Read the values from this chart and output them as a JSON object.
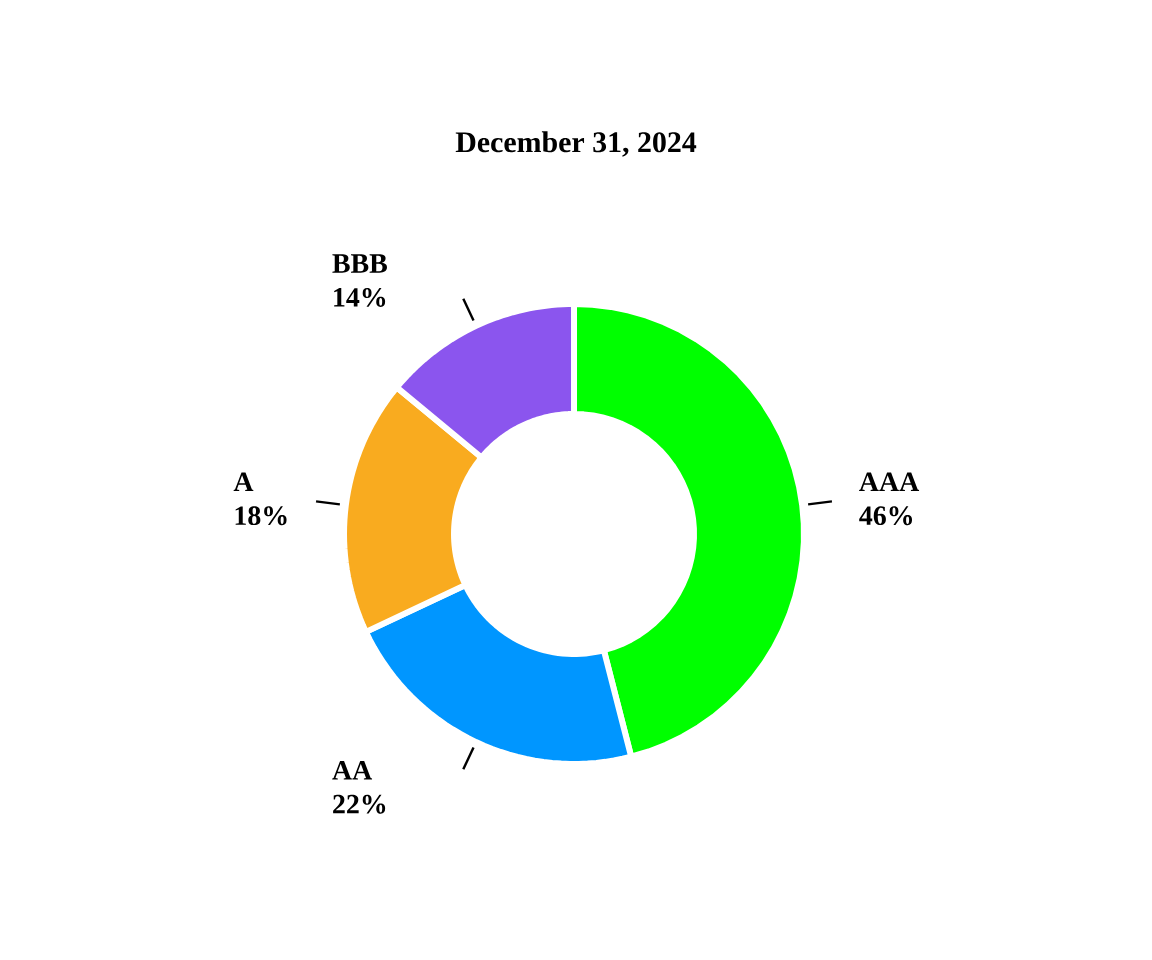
{
  "chart_data": {
    "type": "donut",
    "title": "December 31, 2024",
    "categories": [
      "AAA",
      "AA",
      "A",
      "BBB"
    ],
    "values": [
      46,
      22,
      18,
      14
    ],
    "value_labels": [
      "46%",
      "22%",
      "18%",
      "14%"
    ],
    "colors": [
      "#00ff00",
      "#0096ff",
      "#f9ab1f",
      "#8b55ee"
    ]
  }
}
